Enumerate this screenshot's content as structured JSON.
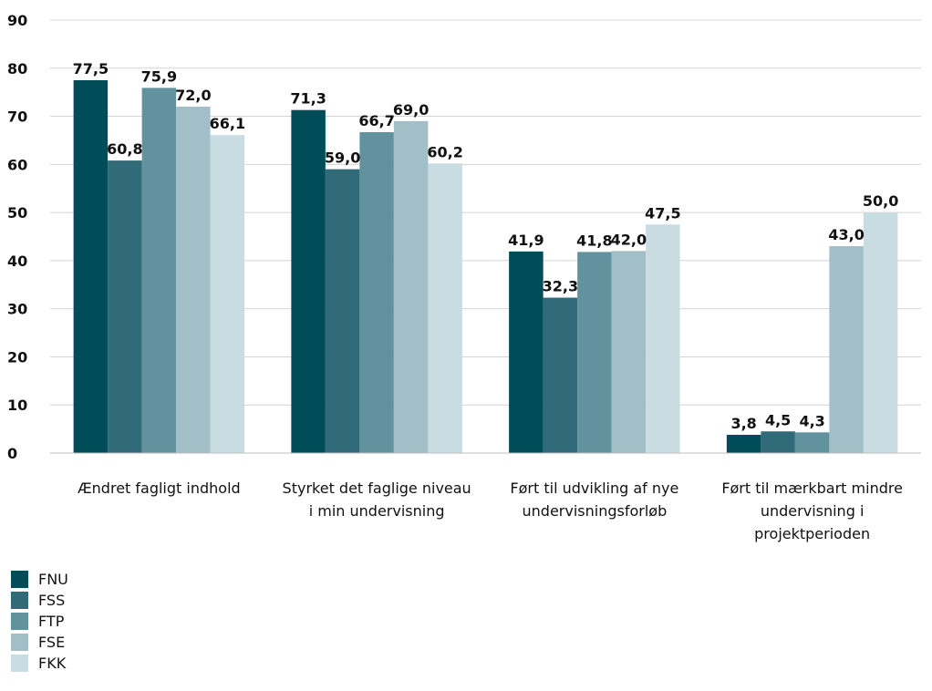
{
  "chart_data": {
    "type": "bar",
    "categories": [
      [
        "Ændret fagligt indhold"
      ],
      [
        "Styrket det faglige niveau",
        "i min undervisning"
      ],
      [
        "Ført til udvikling af nye",
        "undervisningsforløb"
      ],
      [
        "Ført til mærkbart mindre",
        "undervisning i",
        "projektperioden"
      ]
    ],
    "series": [
      {
        "name": "FNU",
        "color": "#004C59",
        "values": [
          77.5,
          71.3,
          41.9,
          3.8
        ]
      },
      {
        "name": "FSS",
        "color": "#316A78",
        "values": [
          60.8,
          59.0,
          32.3,
          4.5
        ]
      },
      {
        "name": "FTP",
        "color": "#62929D",
        "values": [
          75.9,
          66.7,
          41.8,
          4.3
        ]
      },
      {
        "name": "FSE",
        "color": "#A2BEC6",
        "values": [
          72.0,
          69.0,
          42.0,
          43.0
        ]
      },
      {
        "name": "FKK",
        "color": "#C9DCE1",
        "values": [
          66.1,
          60.2,
          47.5,
          50.0
        ]
      }
    ],
    "value_labels": [
      [
        "77,5",
        "71,3",
        "41,9",
        "3,8"
      ],
      [
        "60,8",
        "59,0",
        "32,3",
        "4,5"
      ],
      [
        "75,9",
        "66,7",
        "41,8",
        "4,3"
      ],
      [
        "72,0",
        "69,0",
        "42,0",
        "43,0"
      ],
      [
        "66,1",
        "60,2",
        "47,5",
        "50,0"
      ]
    ],
    "y_ticks": [
      0,
      10,
      20,
      30,
      40,
      50,
      60,
      70,
      80,
      90
    ],
    "ylim": [
      0,
      90
    ],
    "grid": true,
    "legend_position": "bottom-left",
    "title": "",
    "xlabel": "",
    "ylabel": ""
  }
}
